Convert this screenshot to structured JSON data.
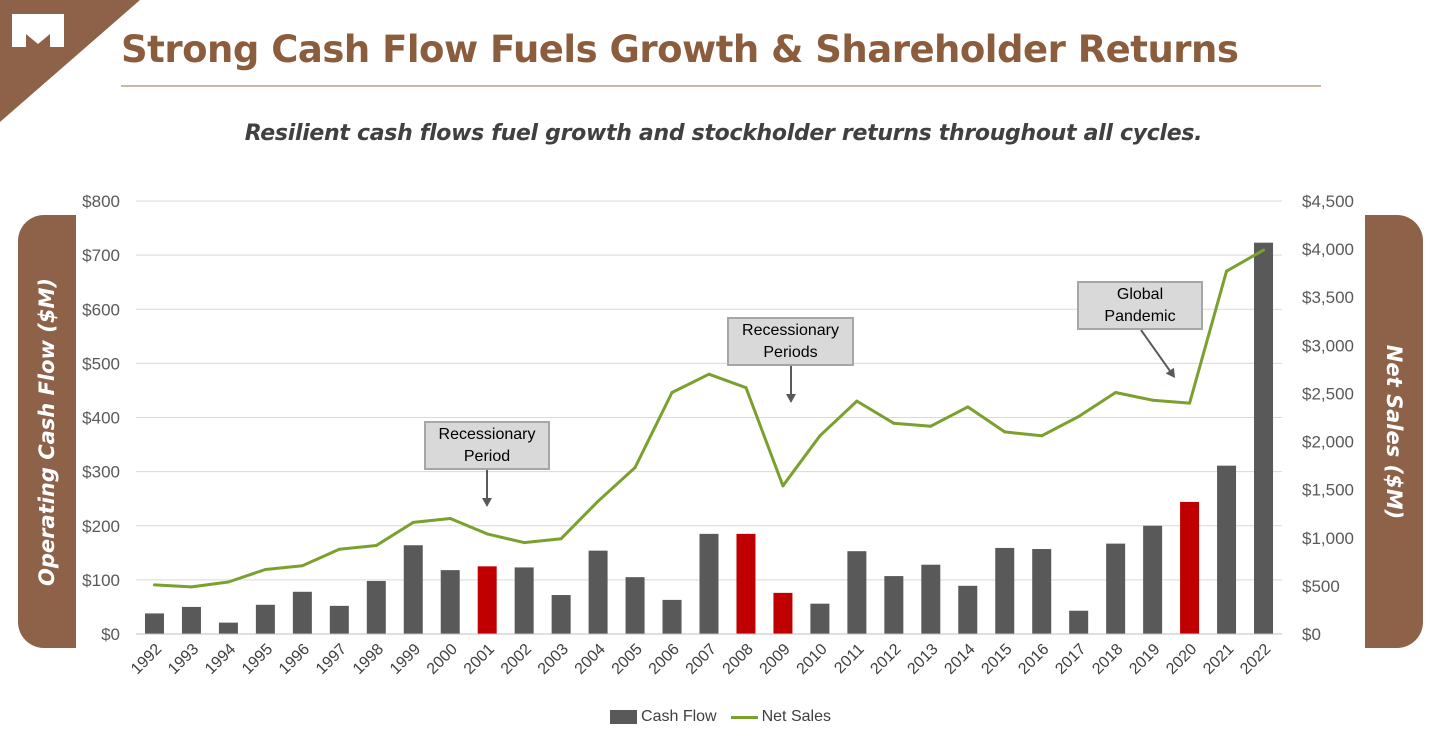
{
  "header": {
    "title": "Strong Cash Flow Fuels Growth & Shareholder Returns",
    "logo_icon": "m-logo-icon",
    "brand_color": "#8b5d3d"
  },
  "subtitle": "Resilient cash flows fuel growth and stockholder returns throughout all cycles.",
  "axis_tabs": {
    "left": "Operating Cash Flow ($M)",
    "right": "Net Sales ($M)"
  },
  "callouts": [
    {
      "text": "Recessionary\nPeriod",
      "target_year": "2001"
    },
    {
      "text": "Recessionary\nPeriods",
      "target_year": "2009"
    },
    {
      "text": "Global\nPandemic",
      "target_year": "2020"
    }
  ],
  "chart_data": {
    "type": "bar",
    "categories": [
      "1992",
      "1993",
      "1994",
      "1995",
      "1996",
      "1997",
      "1998",
      "1999",
      "2000",
      "2001",
      "2002",
      "2003",
      "2004",
      "2005",
      "2006",
      "2007",
      "2008",
      "2009",
      "2010",
      "2011",
      "2012",
      "2013",
      "2014",
      "2015",
      "2016",
      "2017",
      "2018",
      "2019",
      "2020",
      "2021",
      "2022"
    ],
    "series": [
      {
        "name": "Cash Flow",
        "type": "bar",
        "axis": "left",
        "color": "#595959",
        "highlight_color": "#c00000",
        "highlight_categories": [
          "2001",
          "2008",
          "2009",
          "2020"
        ],
        "values": [
          38,
          50,
          21,
          54,
          78,
          52,
          98,
          164,
          118,
          125,
          123,
          72,
          154,
          105,
          63,
          185,
          185,
          76,
          56,
          153,
          107,
          128,
          89,
          159,
          157,
          43,
          167,
          200,
          244,
          311,
          723
        ]
      },
      {
        "name": "Net Sales",
        "type": "line",
        "axis": "right",
        "color": "#7ba02e",
        "values": [
          510,
          490,
          540,
          670,
          710,
          880,
          920,
          1160,
          1200,
          1040,
          950,
          990,
          1380,
          1730,
          2510,
          2700,
          2560,
          1540,
          2060,
          2420,
          2190,
          2160,
          2360,
          2100,
          2060,
          2260,
          2510,
          2430,
          2400,
          3770,
          3990
        ]
      }
    ],
    "y_left": {
      "ylim": [
        0,
        800
      ],
      "ticks": [
        "$0",
        "$100",
        "$200",
        "$300",
        "$400",
        "$500",
        "$600",
        "$700",
        "$800"
      ]
    },
    "y_right": {
      "ylim": [
        0,
        4500
      ],
      "ticks": [
        "$0",
        "$500",
        "$1,000",
        "$1,500",
        "$2,000",
        "$2,500",
        "$3,000",
        "$3,500",
        "$4,000",
        "$4,500"
      ]
    },
    "grid": true,
    "legend": "bottom",
    "legend_entries": [
      "Cash Flow",
      "Net Sales"
    ]
  }
}
